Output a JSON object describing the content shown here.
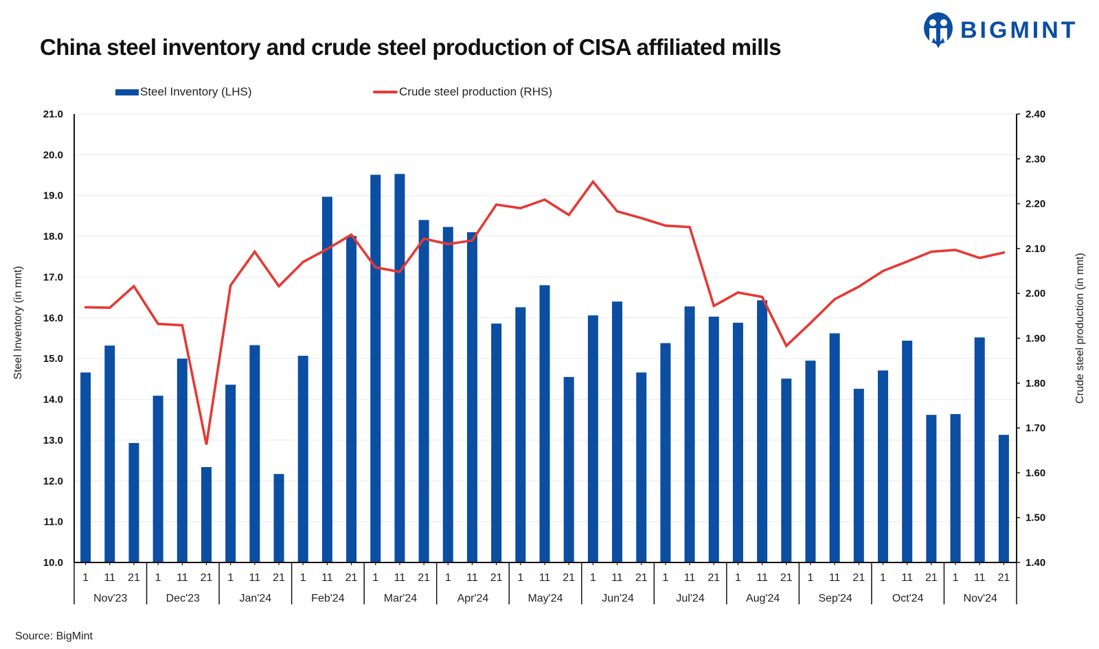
{
  "title": "China steel inventory and crude steel production of CISA affiliated mills",
  "logo": {
    "text": "BIGMINT",
    "icon": "bigmint-people-icon",
    "color": "#0b4ea2"
  },
  "source": "Source: BigMint",
  "chart_data": {
    "type": "bar+line",
    "title": "China steel inventory and crude steel production of CISA affiliated mills",
    "legend": [
      {
        "name": "Steel Inventory (LHS)",
        "type": "bar",
        "color": "#0b4ea2"
      },
      {
        "name": "Crude steel production (RHS)",
        "type": "line",
        "color": "#e53935"
      }
    ],
    "legend_position": "top",
    "ylabel_left": "Steel Inventory (in mnt)",
    "ylabel_right": "Crude steel production (in mnt)",
    "ylim_left": [
      10.0,
      21.0
    ],
    "ylim_right": [
      1.4,
      2.4
    ],
    "yticks_left": [
      "10.0",
      "11.0",
      "12.0",
      "13.0",
      "14.0",
      "15.0",
      "16.0",
      "17.0",
      "18.0",
      "19.0",
      "20.0",
      "21.0"
    ],
    "yticks_right": [
      "1.40",
      "1.50",
      "1.60",
      "1.70",
      "1.80",
      "1.90",
      "2.00",
      "2.10",
      "2.20",
      "2.30",
      "2.40"
    ],
    "grid": true,
    "months": [
      "Nov'23",
      "Dec'23",
      "Jan'24",
      "Feb'24",
      "Mar'24",
      "Apr'24",
      "May'24",
      "Jun'24",
      "Jul'24",
      "Aug'24",
      "Sep'24",
      "Oct'24",
      "Nov'24"
    ],
    "days": [
      "1",
      "11",
      "21"
    ],
    "series": [
      {
        "name": "Steel Inventory (LHS)",
        "axis": "left",
        "values": [
          14.66,
          15.32,
          12.93,
          14.09,
          15.0,
          12.34,
          14.36,
          15.33,
          12.17,
          15.07,
          18.97,
          18.01,
          19.51,
          19.53,
          18.4,
          18.23,
          18.1,
          15.86,
          16.26,
          16.8,
          14.55,
          16.06,
          16.4,
          14.66,
          15.38,
          16.28,
          16.03,
          15.88,
          16.43,
          14.51,
          14.95,
          15.62,
          14.26,
          14.71,
          15.44,
          13.62,
          13.64,
          15.52,
          13.13
        ]
      },
      {
        "name": "Crude steel production (RHS)",
        "axis": "right",
        "values": [
          1.969,
          1.968,
          2.016,
          1.932,
          1.929,
          1.663,
          2.018,
          2.093,
          2.016,
          2.07,
          2.099,
          2.131,
          2.058,
          2.048,
          2.122,
          2.11,
          2.118,
          2.198,
          2.19,
          2.209,
          2.175,
          2.249,
          2.183,
          2.168,
          2.151,
          2.148,
          1.972,
          2.002,
          1.992,
          1.883,
          1.934,
          1.987,
          2.015,
          2.05,
          2.071,
          2.093,
          2.097,
          2.079,
          2.091
        ]
      }
    ]
  }
}
